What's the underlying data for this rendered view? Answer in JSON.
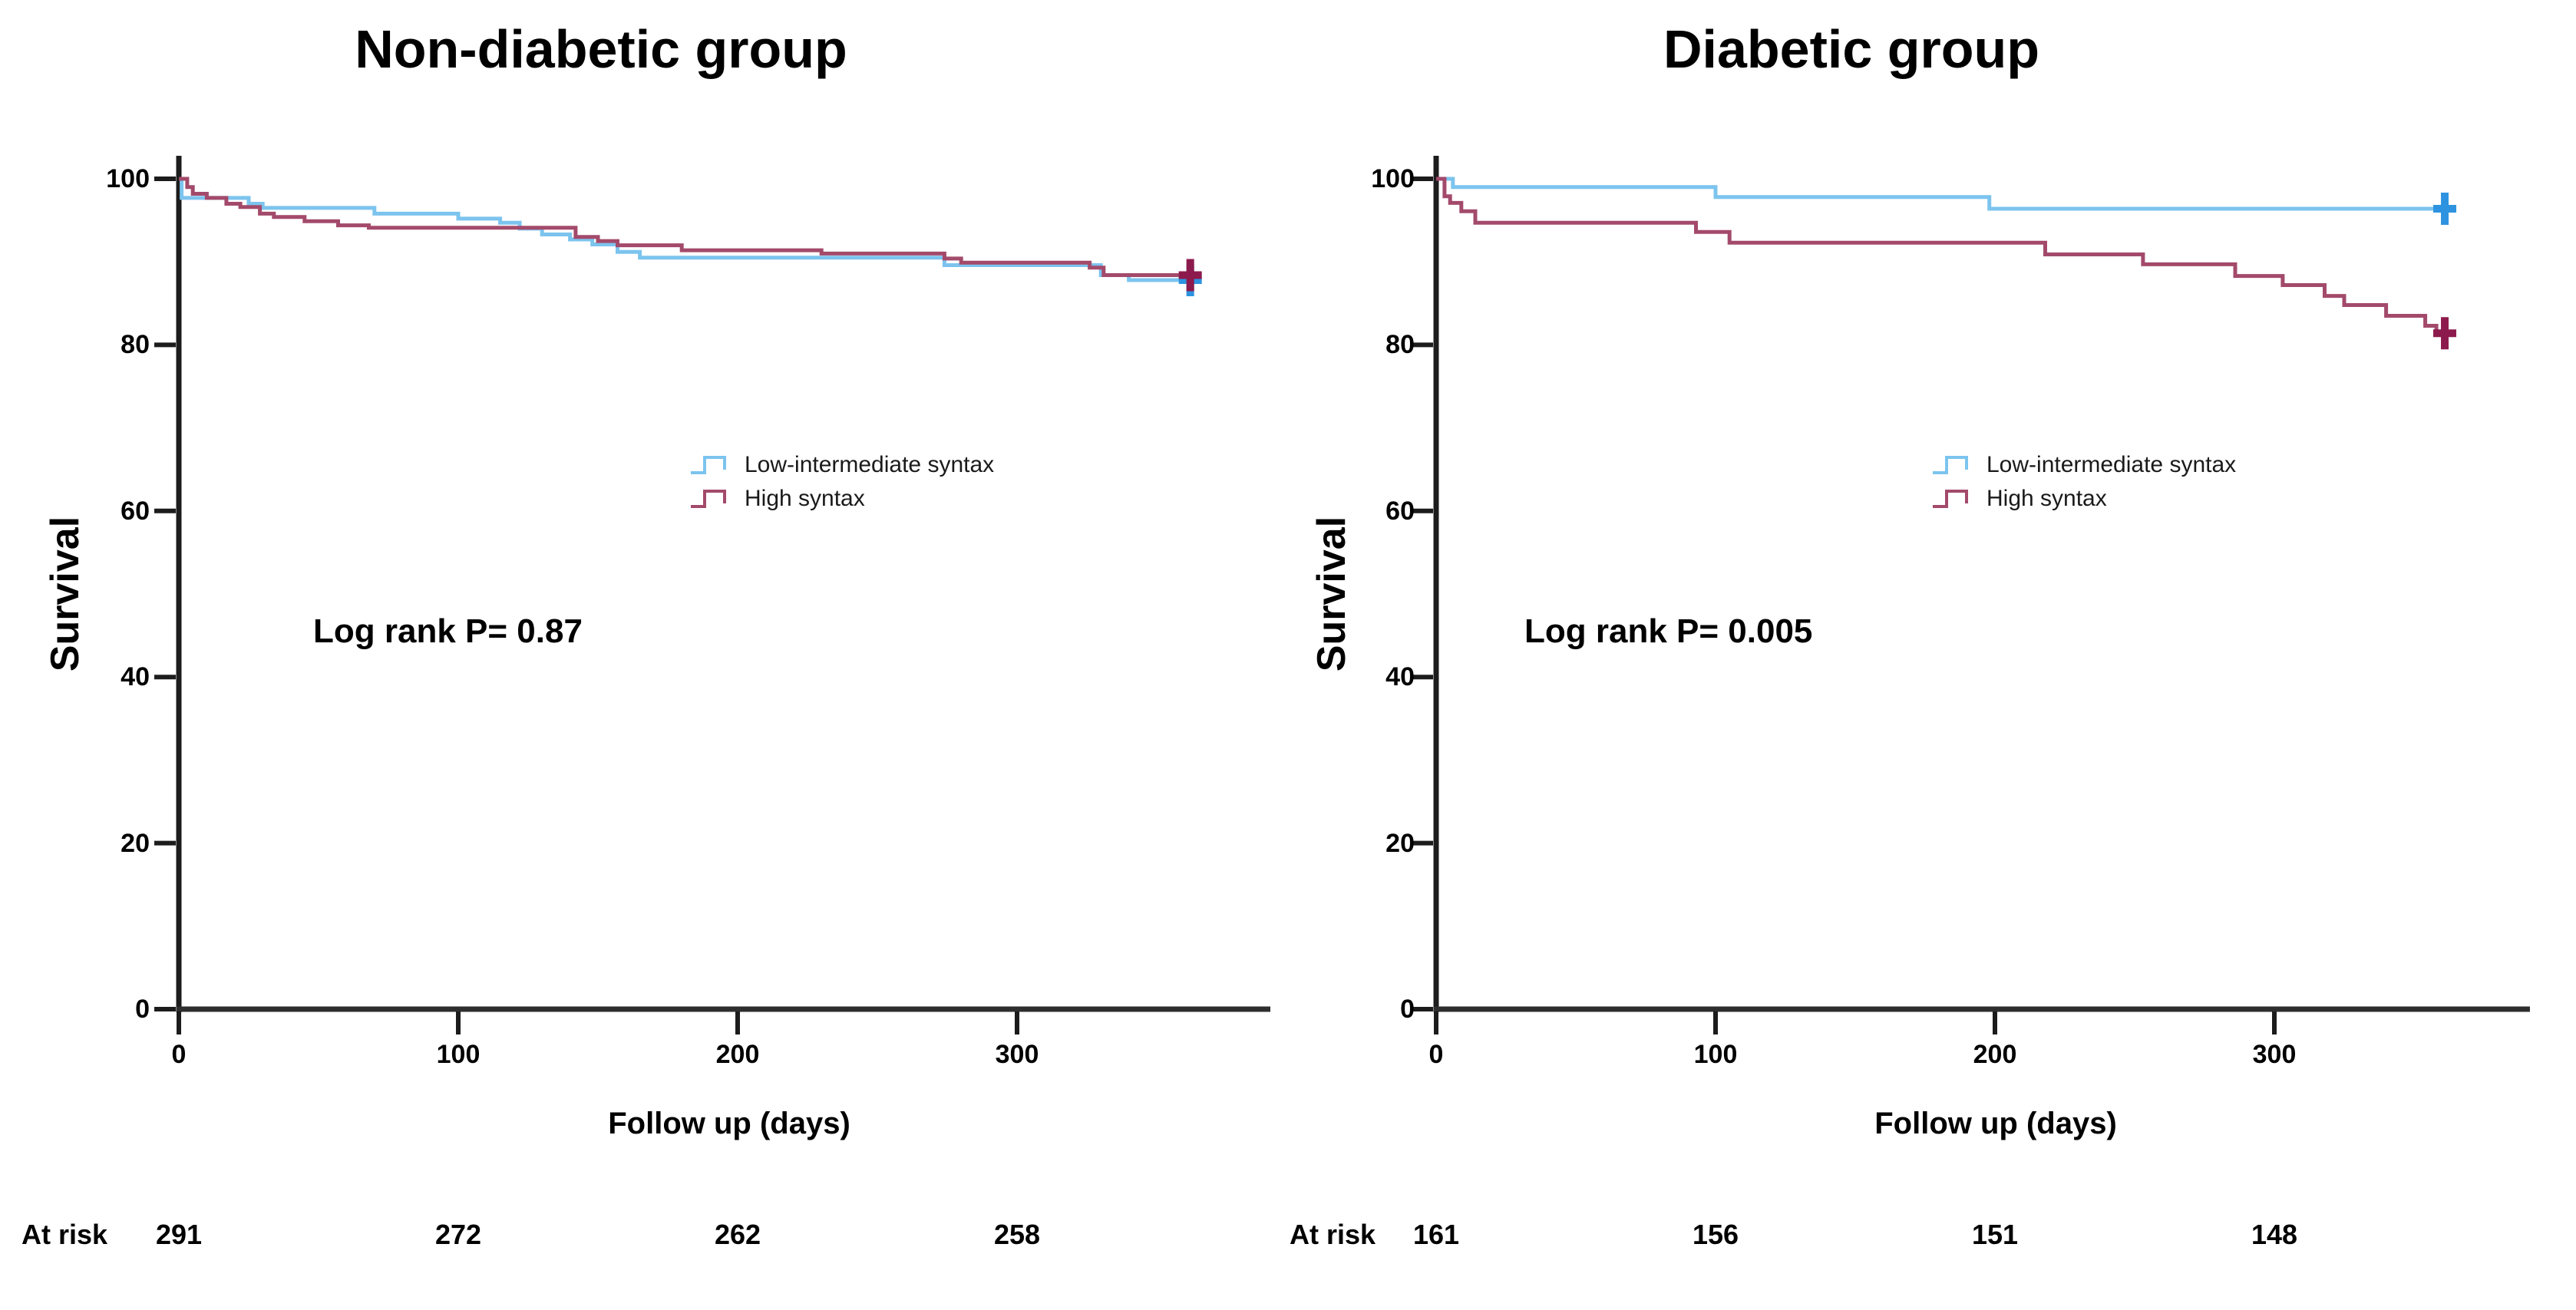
{
  "figure": {
    "background": "#ffffff",
    "axis_color": "#1c1c1c",
    "panels": [
      {
        "title": "Non-diabetic group",
        "ylabel": "Survival",
        "xlabel": "Follow up (days)",
        "log_rank": "Log rank P= 0.87",
        "at_risk_label": "At risk",
        "at_risk_values": [
          "291",
          "272",
          "262",
          "258"
        ],
        "x_ticks": [
          "0",
          "100",
          "200",
          "300"
        ],
        "y_ticks": [
          "100",
          "80",
          "60",
          "40",
          "20",
          "0"
        ],
        "legend": [
          {
            "label": "Low-intermediate syntax",
            "color": "#7CC4EE"
          },
          {
            "label": "High syntax",
            "color": "#A34A6B"
          }
        ]
      },
      {
        "title": "Diabetic group",
        "ylabel": "Survival",
        "xlabel": "Follow up (days)",
        "log_rank": "Log rank P= 0.005",
        "at_risk_label": "At risk",
        "at_risk_values": [
          "161",
          "156",
          "151",
          "148"
        ],
        "x_ticks": [
          "0",
          "100",
          "200",
          "300"
        ],
        "y_ticks": [
          "100",
          "80",
          "60",
          "40",
          "20",
          "0"
        ],
        "legend": [
          {
            "label": "Low-intermediate syntax",
            "color": "#7CC4EE"
          },
          {
            "label": "High syntax",
            "color": "#A34A6B"
          }
        ]
      }
    ]
  },
  "chart_data": [
    {
      "type": "line",
      "subtype": "kaplan-meier-step",
      "title": "Non-diabetic group",
      "xlabel": "Follow up (days)",
      "ylabel": "Survival",
      "xlim": [
        0,
        390
      ],
      "ylim": [
        0,
        100
      ],
      "x_tick_days": [
        0,
        100,
        200,
        300
      ],
      "y_tick_values": [
        0,
        20,
        40,
        60,
        80,
        100
      ],
      "annotation": "Log rank P= 0.87",
      "at_risk": {
        "label": "At risk",
        "days": [
          0,
          100,
          200,
          300
        ],
        "counts": [
          291,
          272,
          262,
          258
        ]
      },
      "series": [
        {
          "name": "Low-intermediate syntax",
          "color": "#7CC4EE",
          "censor_color": "#2D93E0",
          "steps": [
            [
              0,
              100
            ],
            [
              1,
              97.7
            ],
            [
              25,
              97.0
            ],
            [
              30,
              96.5
            ],
            [
              70,
              95.8
            ],
            [
              100,
              95.2
            ],
            [
              115,
              94.7
            ],
            [
              122,
              94.0
            ],
            [
              130,
              93.3
            ],
            [
              140,
              92.7
            ],
            [
              148,
              92.1
            ],
            [
              157,
              91.2
            ],
            [
              165,
              90.5
            ],
            [
              274,
              89.6
            ],
            [
              330,
              88.4
            ],
            [
              340,
              87.8
            ],
            [
              363,
              87.8
            ]
          ],
          "censors": [
            [
              362,
              87.8
            ]
          ]
        },
        {
          "name": "High syntax",
          "color": "#A34A6B",
          "censor_color": "#8D1A4C",
          "steps": [
            [
              0,
              100
            ],
            [
              3,
              99.0
            ],
            [
              5,
              98.2
            ],
            [
              10,
              97.7
            ],
            [
              17,
              97.0
            ],
            [
              22,
              96.6
            ],
            [
              29,
              95.8
            ],
            [
              34,
              95.4
            ],
            [
              45,
              94.9
            ],
            [
              57,
              94.4
            ],
            [
              68,
              94.1
            ],
            [
              142,
              93.0
            ],
            [
              150,
              92.5
            ],
            [
              157,
              92.0
            ],
            [
              180,
              91.4
            ],
            [
              230,
              91.0
            ],
            [
              274,
              90.4
            ],
            [
              280,
              89.9
            ],
            [
              326,
              89.3
            ],
            [
              331,
              88.4
            ],
            [
              363,
              88.4
            ]
          ],
          "censors": [
            [
              362,
              88.4
            ]
          ]
        }
      ]
    },
    {
      "type": "line",
      "subtype": "kaplan-meier-step",
      "title": "Diabetic group",
      "xlabel": "Follow up (days)",
      "ylabel": "Survival",
      "xlim": [
        0,
        390
      ],
      "ylim": [
        0,
        100
      ],
      "x_tick_days": [
        0,
        100,
        200,
        300
      ],
      "y_tick_values": [
        0,
        20,
        40,
        60,
        80,
        100
      ],
      "annotation": "Log rank P= 0.005",
      "at_risk": {
        "label": "At risk",
        "days": [
          0,
          100,
          200,
          300
        ],
        "counts": [
          161,
          156,
          151,
          148
        ]
      },
      "series": [
        {
          "name": "Low-intermediate syntax",
          "color": "#7CC4EE",
          "censor_color": "#2D93E0",
          "steps": [
            [
              0,
              100
            ],
            [
              6,
              99.0
            ],
            [
              100,
              97.8
            ],
            [
              198,
              96.4
            ],
            [
              363,
              96.4
            ]
          ],
          "censors": [
            [
              361,
              96.4
            ]
          ]
        },
        {
          "name": "High syntax",
          "color": "#A34A6B",
          "censor_color": "#8D1A4C",
          "steps": [
            [
              0,
              100
            ],
            [
              3,
              97.9
            ],
            [
              5,
              97.1
            ],
            [
              9,
              96.1
            ],
            [
              14,
              94.7
            ],
            [
              93,
              93.6
            ],
            [
              105,
              92.3
            ],
            [
              218,
              90.9
            ],
            [
              253,
              89.7
            ],
            [
              286,
              88.3
            ],
            [
              303,
              87.2
            ],
            [
              318,
              85.9
            ],
            [
              325,
              84.8
            ],
            [
              340,
              83.5
            ],
            [
              354,
              82.3
            ],
            [
              358,
              81.4
            ],
            [
              363,
              81.4
            ]
          ],
          "censors": [
            [
              361,
              81.4
            ]
          ]
        }
      ]
    }
  ]
}
